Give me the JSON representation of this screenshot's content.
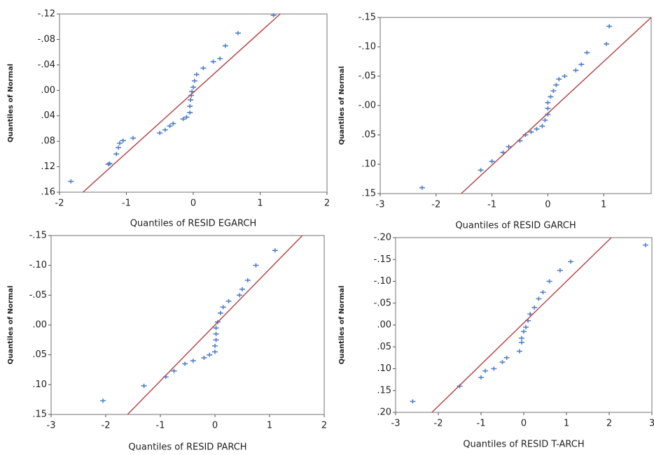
{
  "chart_data": [
    {
      "type": "scatter",
      "xlabel": "Quantiles of RESID EGARCH",
      "ylabel": "Quantiles of Normal",
      "xlim": [
        -2,
        2
      ],
      "xticks": [
        -2,
        -1,
        0,
        1,
        2
      ],
      "ylim": [
        0.16,
        -0.12
      ],
      "yticks": [
        {
          "value": -0.12,
          "label": "-.12"
        },
        {
          "value": -0.08,
          "label": "-.08"
        },
        {
          "value": -0.04,
          "label": "-.04"
        },
        {
          "value": 0,
          "label": ".00"
        },
        {
          "value": 0.04,
          "label": ".04"
        },
        {
          "value": 0.08,
          "label": ".08"
        },
        {
          "value": 0.12,
          "label": ".12"
        },
        {
          "value": 0.16,
          "label": ".16"
        }
      ],
      "series": [
        {
          "style": "markers",
          "color": "#4f7fc8",
          "x": [
            -1.83,
            -1.27,
            -1.25,
            -1.15,
            -1.12,
            -1.1,
            -1.05,
            -0.9,
            -0.5,
            -0.42,
            -0.35,
            -0.3,
            -0.15,
            -0.1,
            -0.05,
            -0.05,
            -0.04,
            -0.03,
            -0.02,
            0,
            0.02,
            0.05,
            0.15,
            0.3,
            0.4,
            0.48,
            0.67,
            1.2
          ],
          "values": [
            0.143,
            0.116,
            0.115,
            0.1,
            0.09,
            0.083,
            0.079,
            0.075,
            0.067,
            0.062,
            0.056,
            0.052,
            0.045,
            0.042,
            0.035,
            0.025,
            0.015,
            0.008,
            0.002,
            -0.005,
            -0.015,
            -0.025,
            -0.035,
            -0.045,
            -0.05,
            -0.07,
            -0.09,
            -0.118
          ]
        },
        {
          "style": "line",
          "color": "#b5484a",
          "x": [
            -1.65,
            1.3
          ],
          "values": [
            0.16,
            -0.12
          ]
        }
      ]
    },
    {
      "type": "scatter",
      "xlabel": "Quantiles of RESID GARCH",
      "ylabel": "Quantiles of Normal",
      "xlim": [
        -3,
        1.85
      ],
      "xticks": [
        -3,
        -2,
        -1,
        0,
        1
      ],
      "ylim": [
        0.15,
        -0.15
      ],
      "yticks": [
        {
          "value": -0.15,
          "label": "-.15"
        },
        {
          "value": -0.1,
          "label": "-.10"
        },
        {
          "value": -0.05,
          "label": "-.05"
        },
        {
          "value": 0,
          "label": "-.00"
        },
        {
          "value": 0.05,
          "label": ".05"
        },
        {
          "value": 0.1,
          "label": ".10"
        },
        {
          "value": 0.15,
          "label": ".15"
        }
      ],
      "series": [
        {
          "style": "markers",
          "color": "#4f7fc8",
          "x": [
            -2.25,
            -1.2,
            -1.0,
            -0.8,
            -0.7,
            -0.5,
            -0.4,
            -0.3,
            -0.2,
            -0.1,
            -0.05,
            0,
            0,
            0,
            0.05,
            0.1,
            0.15,
            0.2,
            0.3,
            0.5,
            0.6,
            0.7,
            1.05,
            1.1
          ],
          "values": [
            0.14,
            0.11,
            0.095,
            0.08,
            0.07,
            0.06,
            0.05,
            0.045,
            0.04,
            0.035,
            0.025,
            0.015,
            0.005,
            -0.005,
            -0.015,
            -0.025,
            -0.035,
            -0.045,
            -0.05,
            -0.06,
            -0.07,
            -0.09,
            -0.105,
            -0.135
          ]
        },
        {
          "style": "line",
          "color": "#b5484a",
          "x": [
            -1.55,
            1.85
          ],
          "values": [
            0.15,
            -0.15
          ]
        }
      ]
    },
    {
      "type": "scatter",
      "xlabel": "Quantiles of RESID PARCH",
      "ylabel": "Quantiles of Normal",
      "xlim": [
        -3,
        2
      ],
      "xticks": [
        -3,
        -2,
        -1,
        0,
        1,
        2
      ],
      "ylim": [
        0.15,
        -0.15
      ],
      "yticks": [
        {
          "value": -0.15,
          "label": "-.15"
        },
        {
          "value": -0.1,
          "label": "-.10"
        },
        {
          "value": -0.05,
          "label": "-.05"
        },
        {
          "value": 0,
          "label": ".00"
        },
        {
          "value": 0.05,
          "label": ".05"
        },
        {
          "value": 0.1,
          "label": ".10"
        },
        {
          "value": 0.15,
          "label": ".15"
        }
      ],
      "series": [
        {
          "style": "markers",
          "color": "#4f7fc8",
          "x": [
            -2.05,
            -1.3,
            -0.9,
            -0.75,
            -0.55,
            -0.4,
            -0.2,
            -0.1,
            0,
            0,
            0.02,
            0.02,
            0.02,
            0.05,
            0.1,
            0.15,
            0.25,
            0.45,
            0.5,
            0.6,
            0.75,
            1.1
          ],
          "values": [
            0.127,
            0.102,
            0.087,
            0.077,
            0.065,
            0.06,
            0.055,
            0.05,
            0.045,
            0.035,
            0.025,
            0.015,
            0.005,
            -0.005,
            -0.02,
            -0.03,
            -0.04,
            -0.05,
            -0.06,
            -0.075,
            -0.1,
            -0.125
          ]
        },
        {
          "style": "line",
          "color": "#b5484a",
          "x": [
            -1.6,
            1.6
          ],
          "values": [
            0.15,
            -0.15
          ]
        }
      ]
    },
    {
      "type": "scatter",
      "xlabel": "Quantiles of RESID T-ARCH",
      "ylabel": "Quantiles of Normal",
      "xlim": [
        -3,
        3
      ],
      "xticks": [
        -3,
        -2,
        -1,
        0,
        1,
        2,
        3
      ],
      "ylim": [
        0.2,
        -0.2
      ],
      "yticks": [
        {
          "value": -0.2,
          "label": "-.20"
        },
        {
          "value": -0.15,
          "label": "-.15"
        },
        {
          "value": -0.1,
          "label": "-.10"
        },
        {
          "value": -0.05,
          "label": "-.05"
        },
        {
          "value": 0,
          "label": ".00"
        },
        {
          "value": 0.05,
          "label": ".05"
        },
        {
          "value": 0.1,
          "label": ".10"
        },
        {
          "value": 0.15,
          "label": ".15"
        },
        {
          "value": 0.2,
          "label": ".20"
        }
      ],
      "series": [
        {
          "style": "markers",
          "color": "#4f7fc8",
          "x": [
            -2.6,
            -1.5,
            -1.0,
            -0.9,
            -0.7,
            -0.5,
            -0.4,
            -0.1,
            -0.05,
            -0.05,
            0,
            0.05,
            0.1,
            0.15,
            0.25,
            0.35,
            0.45,
            0.6,
            0.85,
            1.1,
            2.85
          ],
          "values": [
            0.175,
            0.14,
            0.12,
            0.105,
            0.1,
            0.085,
            0.075,
            0.06,
            0.04,
            0.03,
            0.015,
            0.005,
            -0.01,
            -0.025,
            -0.04,
            -0.06,
            -0.075,
            -0.1,
            -0.125,
            -0.145,
            -0.183
          ]
        },
        {
          "style": "line",
          "color": "#b5484a",
          "x": [
            -2.15,
            2.05
          ],
          "values": [
            0.2,
            -0.2
          ]
        }
      ]
    }
  ]
}
